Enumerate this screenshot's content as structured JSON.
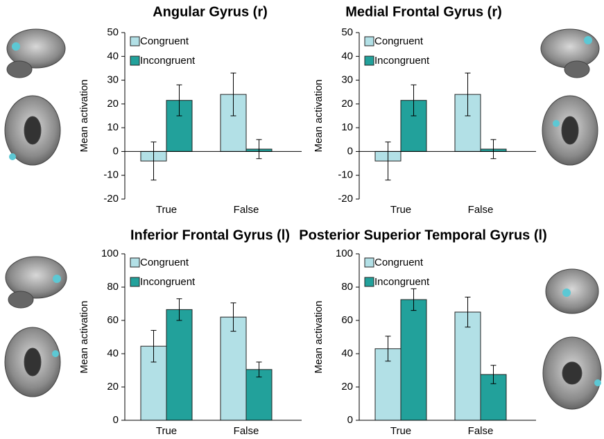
{
  "chart_data": [
    {
      "type": "bar",
      "title": "Angular Gyrus (r)",
      "y_label": "Mean activation",
      "categories": [
        "True",
        "False"
      ],
      "series": [
        {
          "name": "Congruent",
          "color": "#b2e0e6",
          "values": [
            -4,
            24
          ],
          "errors": [
            8,
            9
          ]
        },
        {
          "name": "Incongruent",
          "color": "#22a19b",
          "values": [
            21.5,
            1
          ],
          "errors": [
            6.5,
            4
          ]
        }
      ],
      "ylim": [
        -20,
        50
      ],
      "yticks": [
        -20,
        -10,
        0,
        10,
        20,
        30,
        40,
        50
      ],
      "legend": "upper left",
      "grid": false
    },
    {
      "type": "bar",
      "title": "Medial Frontal Gyrus (r)",
      "y_label": "Mean activation",
      "categories": [
        "True",
        "False"
      ],
      "series": [
        {
          "name": "Congruent",
          "color": "#b2e0e6",
          "values": [
            -4,
            24
          ],
          "errors": [
            8,
            9
          ]
        },
        {
          "name": "Incongruent",
          "color": "#22a19b",
          "values": [
            21.5,
            1
          ],
          "errors": [
            6.5,
            4
          ]
        }
      ],
      "ylim": [
        -20,
        50
      ],
      "yticks": [
        -20,
        -10,
        0,
        10,
        20,
        30,
        40,
        50
      ],
      "legend": "upper left",
      "grid": false
    },
    {
      "type": "bar",
      "title": "Inferior Frontal Gyrus (l)",
      "y_label": "Mean activation",
      "categories": [
        "True",
        "False"
      ],
      "series": [
        {
          "name": "Congruent",
          "color": "#b2e0e6",
          "values": [
            44.5,
            62
          ],
          "errors": [
            9.5,
            8.5
          ]
        },
        {
          "name": "Incongruent",
          "color": "#22a19b",
          "values": [
            66.5,
            30.5
          ],
          "errors": [
            6.5,
            4.5
          ]
        }
      ],
      "ylim": [
        0,
        100
      ],
      "yticks": [
        0,
        20,
        40,
        60,
        80,
        100
      ],
      "legend": "upper left",
      "grid": false
    },
    {
      "type": "bar",
      "title": "Posterior Superior Temporal Gyrus (l)",
      "y_label": "Mean activation",
      "categories": [
        "True",
        "False"
      ],
      "series": [
        {
          "name": "Congruent",
          "color": "#b2e0e6",
          "values": [
            43,
            65
          ],
          "errors": [
            7.5,
            9
          ]
        },
        {
          "name": "Incongruent",
          "color": "#22a19b",
          "values": [
            72.5,
            27.5
          ],
          "errors": [
            6.5,
            5.5
          ]
        }
      ],
      "ylim": [
        0,
        100
      ],
      "yticks": [
        0,
        20,
        40,
        60,
        80,
        100
      ],
      "legend": "upper left",
      "grid": false
    }
  ]
}
